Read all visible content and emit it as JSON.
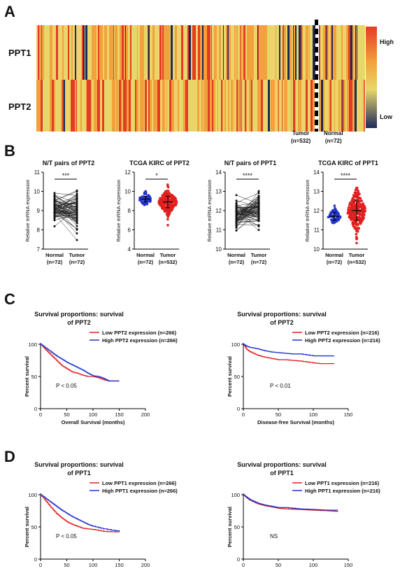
{
  "panels": {
    "a": "A",
    "b": "B",
    "c": "C",
    "d": "D"
  },
  "heatmap": {
    "rows": [
      "PPT1",
      "PPT2"
    ],
    "legend_high": "High",
    "legend_low": "Low",
    "tumor_label": "Tumor",
    "tumor_n": "(n=532)",
    "normal_label": "Normal",
    "normal_n": "(n=72)",
    "colors": [
      "#1c2a5c",
      "#e8d66a",
      "#f2a23c",
      "#e63b24"
    ]
  },
  "chart_data": [
    {
      "type": "scatter",
      "title": "N/T pairs of PPT2",
      "ylabel": "Relative mRNA expression",
      "ylim": [
        7,
        11
      ],
      "yticks": [
        7,
        8,
        9,
        10,
        11
      ],
      "categories": [
        "Normal\n(n=72)",
        "Tumor\n(n=72)"
      ],
      "cat_line1": [
        "Normal",
        "Tumor"
      ],
      "cat_line2": [
        "(n=72)",
        "(n=72)"
      ],
      "paired": true,
      "significance": "***",
      "series": [
        {
          "values_mean": [
            9.2,
            9.0
          ]
        }
      ]
    },
    {
      "type": "scatter",
      "title": "TCGA KIRC of PPT2",
      "ylabel": "Relative mRNA expression",
      "ylim": [
        4,
        12
      ],
      "yticks": [
        4,
        6,
        8,
        10,
        12
      ],
      "cat_line1": [
        "Normal",
        "Tumor"
      ],
      "cat_line2": [
        "(n=72)",
        "(n=532)"
      ],
      "paired": false,
      "significance": "*",
      "series": [
        {
          "mean": 9.2,
          "sd": 0.3,
          "color": "#2233cc"
        },
        {
          "mean": 8.9,
          "sd": 0.6,
          "color": "#e02020"
        }
      ]
    },
    {
      "type": "scatter",
      "title": "N/T pairs of PPT1",
      "ylabel": "Relative mRNA expression",
      "ylim": [
        10,
        14
      ],
      "yticks": [
        10,
        11,
        12,
        13,
        14
      ],
      "cat_line1": [
        "Normal",
        "Tumor"
      ],
      "cat_line2": [
        "(n=72)",
        "(n=72)"
      ],
      "paired": true,
      "significance": "****",
      "series": [
        {
          "values_mean": [
            11.7,
            12.0
          ]
        }
      ]
    },
    {
      "type": "scatter",
      "title": "TCGA KIRC of PPT1",
      "ylabel": "Relative mRNA expression",
      "ylim": [
        10,
        14
      ],
      "yticks": [
        10,
        11,
        12,
        13,
        14
      ],
      "cat_line1": [
        "Normal",
        "Tumor"
      ],
      "cat_line2": [
        "(n=72)",
        "(n=532)"
      ],
      "paired": false,
      "significance": "****",
      "series": [
        {
          "mean": 11.7,
          "sd": 0.2,
          "color": "#2233cc"
        },
        {
          "mean": 12.0,
          "sd": 0.5,
          "color": "#e02020"
        }
      ]
    },
    {
      "type": "line",
      "title": "Survival proportions: survival\nof PPT2",
      "title_l1": "Survival proportions: survival",
      "title_l2": "of PPT2",
      "xlabel": "Overall Survival (months)",
      "ylabel": "Percent survival",
      "xlim": [
        0,
        200
      ],
      "xticks": [
        0,
        50,
        100,
        150,
        200
      ],
      "ylim": [
        0,
        100
      ],
      "yticks": [
        0,
        50,
        100
      ],
      "pvalue": "P < 0.05",
      "series": [
        {
          "name": "Low PPT2 expression (n=266)",
          "color": "#e02020",
          "x": [
            0,
            10,
            20,
            30,
            40,
            50,
            60,
            70,
            80,
            90,
            100,
            110,
            120,
            130,
            150
          ],
          "y": [
            100,
            91,
            83,
            75,
            67,
            62,
            57,
            55,
            52,
            50,
            50,
            48,
            45,
            43,
            43
          ]
        },
        {
          "name": "High PPT2 expression (n=266)",
          "color": "#2233cc",
          "x": [
            0,
            10,
            20,
            30,
            40,
            50,
            60,
            70,
            80,
            90,
            100,
            110,
            120,
            130,
            150
          ],
          "y": [
            100,
            94,
            88,
            82,
            77,
            72,
            68,
            64,
            60,
            55,
            51,
            50,
            47,
            43,
            43
          ]
        }
      ]
    },
    {
      "type": "line",
      "title": "Survival proportions: survival\nof PPT2",
      "title_l1": "Survival proportions: survival",
      "title_l2": "of PPT2",
      "xlabel": "Disease-free Survival (months)",
      "ylabel": "Percent survival",
      "xlim": [
        0,
        150
      ],
      "xticks": [
        0,
        50,
        100,
        150
      ],
      "ylim": [
        0,
        100
      ],
      "yticks": [
        0,
        50,
        100
      ],
      "pvalue": "P < 0.01",
      "series": [
        {
          "name": "Low PPT2 expression (n=216)",
          "color": "#e02020",
          "x": [
            0,
            5,
            10,
            20,
            30,
            40,
            50,
            60,
            70,
            80,
            100,
            110,
            130
          ],
          "y": [
            100,
            92,
            88,
            83,
            80,
            78,
            76,
            76,
            75,
            74,
            71,
            70,
            70
          ]
        },
        {
          "name": "High PPT2 expression (n=216)",
          "color": "#2233cc",
          "x": [
            0,
            5,
            10,
            20,
            30,
            40,
            50,
            60,
            70,
            80,
            100,
            110,
            130
          ],
          "y": [
            100,
            97,
            95,
            93,
            90,
            88,
            87,
            86,
            85,
            85,
            82,
            82,
            82
          ]
        }
      ]
    },
    {
      "type": "line",
      "title": "Survival proportions: survival\nof PPT1",
      "title_l1": "Survival proportions: survival",
      "title_l2": "of PPT1",
      "xlabel": "Overall Survival (months)",
      "ylabel": "Percent survival",
      "xlim": [
        0,
        200
      ],
      "xticks": [
        0,
        50,
        100,
        150,
        200
      ],
      "ylim": [
        0,
        100
      ],
      "yticks": [
        0,
        50,
        100
      ],
      "pvalue": "P < 0.05",
      "series": [
        {
          "name": "Low PPT1 expression (n=266)",
          "color": "#e02020",
          "x": [
            0,
            10,
            20,
            30,
            40,
            50,
            60,
            70,
            80,
            90,
            100,
            120,
            150
          ],
          "y": [
            100,
            90,
            80,
            71,
            64,
            58,
            54,
            51,
            48,
            47,
            46,
            43,
            42
          ]
        },
        {
          "name": "High PPT1 expression (n=266)",
          "color": "#2233cc",
          "x": [
            0,
            10,
            20,
            30,
            40,
            50,
            60,
            70,
            80,
            90,
            100,
            120,
            150
          ],
          "y": [
            100,
            94,
            88,
            82,
            76,
            71,
            66,
            62,
            58,
            54,
            51,
            47,
            43
          ]
        }
      ]
    },
    {
      "type": "line",
      "title": "Survival proportions: survival\nof PPT1",
      "title_l1": "Survival proportions: survival",
      "title_l2": "of PPT1",
      "xlabel": "Disease-free Survival (months)",
      "ylabel": "Percent survival",
      "xlim": [
        0,
        150
      ],
      "xticks": [
        0,
        50,
        100,
        150
      ],
      "ylim": [
        0,
        100
      ],
      "yticks": [
        0,
        50,
        100
      ],
      "pvalue": "NS",
      "series": [
        {
          "name": "Low PPT1 expression (n=216)",
          "color": "#e02020",
          "x": [
            0,
            5,
            10,
            20,
            30,
            40,
            50,
            60,
            80,
            100,
            120,
            135
          ],
          "y": [
            100,
            95,
            91,
            86,
            83,
            81,
            79,
            78,
            77,
            76,
            75,
            74
          ]
        },
        {
          "name": "High PPT1 expression (n=216)",
          "color": "#2233cc",
          "x": [
            0,
            5,
            10,
            20,
            30,
            40,
            50,
            60,
            80,
            100,
            120,
            135
          ],
          "y": [
            100,
            96,
            92,
            87,
            84,
            82,
            80,
            80,
            78,
            77,
            76,
            76
          ]
        }
      ]
    }
  ]
}
